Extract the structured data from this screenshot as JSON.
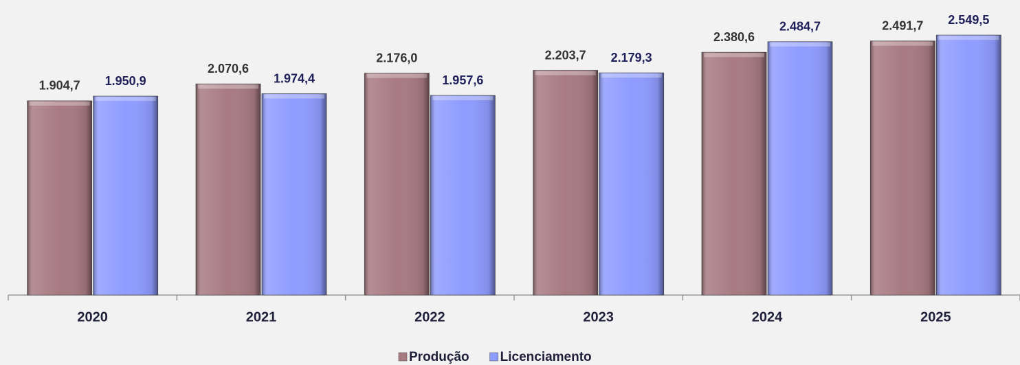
{
  "chart_data": {
    "type": "bar",
    "categories": [
      "2020",
      "2021",
      "2022",
      "2023",
      "2024",
      "2025"
    ],
    "series": [
      {
        "name": "Produção",
        "color": "#a87a82",
        "values": [
          1904.7,
          2070.6,
          2176.0,
          2203.7,
          2380.6,
          2491.7
        ],
        "value_labels": [
          "1.904,7",
          "2.070,6",
          "2.176,0",
          "2.203,7",
          "2.380,6",
          "2.491,7"
        ]
      },
      {
        "name": "Licenciamento",
        "color": "#8f9cff",
        "values": [
          1950.9,
          1974.4,
          1957.6,
          2179.3,
          2484.7,
          2549.5
        ],
        "value_labels": [
          "1.950,9",
          "1.974,4",
          "1.957,6",
          "2.179,3",
          "2.484,7",
          "2.549,5"
        ]
      }
    ],
    "ylim": [
      0,
      2880
    ]
  }
}
